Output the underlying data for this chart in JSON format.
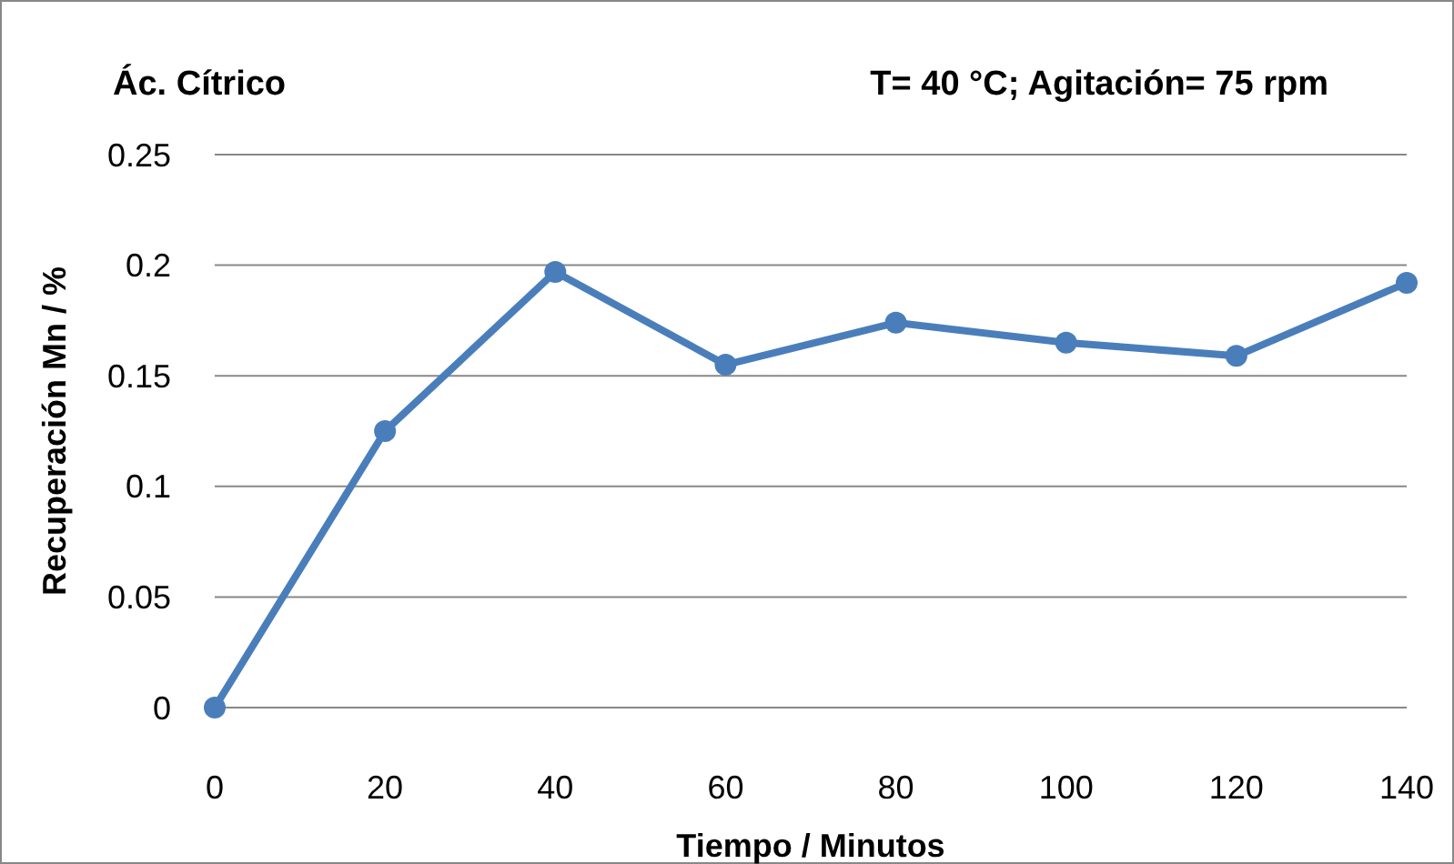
{
  "chart_data": {
    "type": "line",
    "title": "Ác. Cítrico",
    "subtitle": "T= 40 °C; Agitación= 75 rpm",
    "xlabel": "Tiempo / Minutos",
    "ylabel": "Recuperación Mn / %",
    "x": [
      0,
      20,
      40,
      60,
      80,
      100,
      120,
      140
    ],
    "series": [
      {
        "color": "#4a7ebb",
        "values": [
          0,
          0.125,
          0.197,
          0.155,
          0.174,
          0.165,
          0.159,
          0.192
        ]
      }
    ],
    "xlim": [
      0,
      140
    ],
    "xticks": [
      0,
      20,
      40,
      60,
      80,
      100,
      120,
      140
    ],
    "ylim": [
      0,
      0.25
    ],
    "yticks": [
      0,
      0.05,
      0.1,
      0.15,
      0.2,
      0.25
    ],
    "grid": "y",
    "marker": "circle",
    "line_style": "solid"
  }
}
